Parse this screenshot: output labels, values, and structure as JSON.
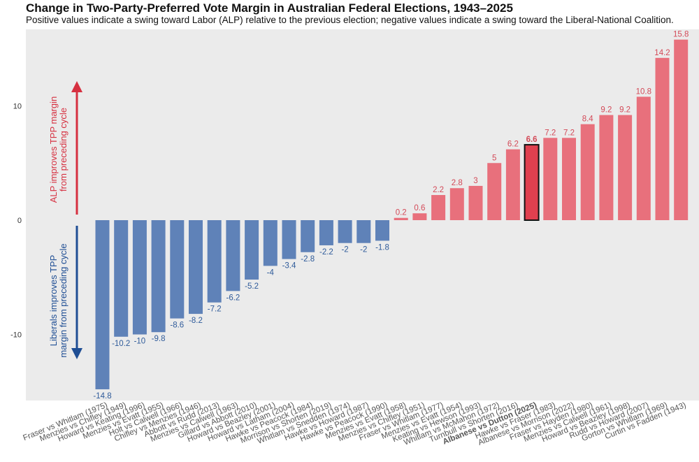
{
  "chart_data": {
    "type": "bar",
    "title": "Change in Two-Party-Preferred Vote Margin in Australian Federal Elections, 1943–2025",
    "subtitle": "Positive values indicate a swing toward Labor (ALP) relative to the previous election; negative values indicate a swing toward the Liberal-National Coalition.",
    "xlabel": "",
    "ylabel": "",
    "ylim": [
      -15.5,
      16.3
    ],
    "yticks": [
      -10,
      0,
      10
    ],
    "grid": false,
    "categories": [
      "Fraser vs Whitlam (1975)",
      "Menzies vs Chifley (1949)",
      "Howard vs Keating (1996)",
      "Menzies vs Evatt (1955)",
      "Holt vs Calwell (1966)",
      "Chifley vs Menzies (1946)",
      "Abbott vs Rudd (2013)",
      "Menzies vs Calwell (1963)",
      "Gillard vs Abbott (2010)",
      "Howard vs Beazley (2001)",
      "Howard vs Latham (2004)",
      "Hawke vs Peacock (1984)",
      "Morrison vs Shorten (2019)",
      "Whitlam vs Snedden (1974)",
      "Hawke vs Howard (1987)",
      "Hawke vs Peacock (1990)",
      "Menzies vs Evatt (1958)",
      "Menzies vs Chifley (1951)",
      "Fraser vs Whitlam (1977)",
      "Menzies vs Evatt (1954)",
      "Keating vs Hewson (1993)",
      "Whitlam vs McMahon (1972)",
      "Turnbull vs Shorten (2016)",
      "Albanese vs Dutton (2025)",
      "Hawke vs Fraser (1983)",
      "Albanese vs Morrison (2022)",
      "Fraser vs Hayden (1980)",
      "Menzies vs Calwell (1961)",
      "Howard vs Beazley (1998)",
      "Rudd vs Howard (2007)",
      "Gorton vs Whitlam (1969)",
      "Curtin vs Fadden (1943)"
    ],
    "values": [
      -14.8,
      -10.2,
      -10,
      -9.8,
      -8.6,
      -8.2,
      -7.2,
      -6.2,
      -5.2,
      -4,
      -3.4,
      -2.8,
      -2.2,
      -2,
      -2,
      -1.8,
      0.2,
      0.6,
      2.2,
      2.8,
      3,
      5,
      6.2,
      6.6,
      7.2,
      7.2,
      8.4,
      9.2,
      9.2,
      10.8,
      14.2,
      15.8
    ],
    "value_labels": [
      "-14.8",
      "-10.2",
      "-10",
      "-9.8",
      "-8.6",
      "-8.2",
      "-7.2",
      "-6.2",
      "-5.2",
      "-4",
      "-3.4",
      "-2.8",
      "-2.2",
      "-2",
      "-2",
      "-1.8",
      "0.2",
      "0.6",
      "2.2",
      "2.8",
      "3",
      "5",
      "6.2",
      "6.6",
      "7.2",
      "7.2",
      "8.4",
      "9.2",
      "9.2",
      "10.8",
      "14.2",
      "15.8"
    ],
    "highlight": "Albanese vs Dutton (2025)",
    "annotations": [
      {
        "text_lines": [
          "ALP improves TPP margin",
          "from preceding cycle"
        ],
        "direction": "up"
      },
      {
        "text_lines": [
          "Liberals improves TPP",
          "margin from preceding cycle"
        ],
        "direction": "down"
      }
    ],
    "colors": {
      "positive": "#e8707c",
      "negative": "#5f82b8",
      "highlight": "#e0404f",
      "positive_text": "#d34a58",
      "negative_text": "#2f5b9a",
      "arrow_up": "#d63040",
      "arrow_down": "#1f4e94",
      "panel_bg": "#ebebeb"
    }
  }
}
